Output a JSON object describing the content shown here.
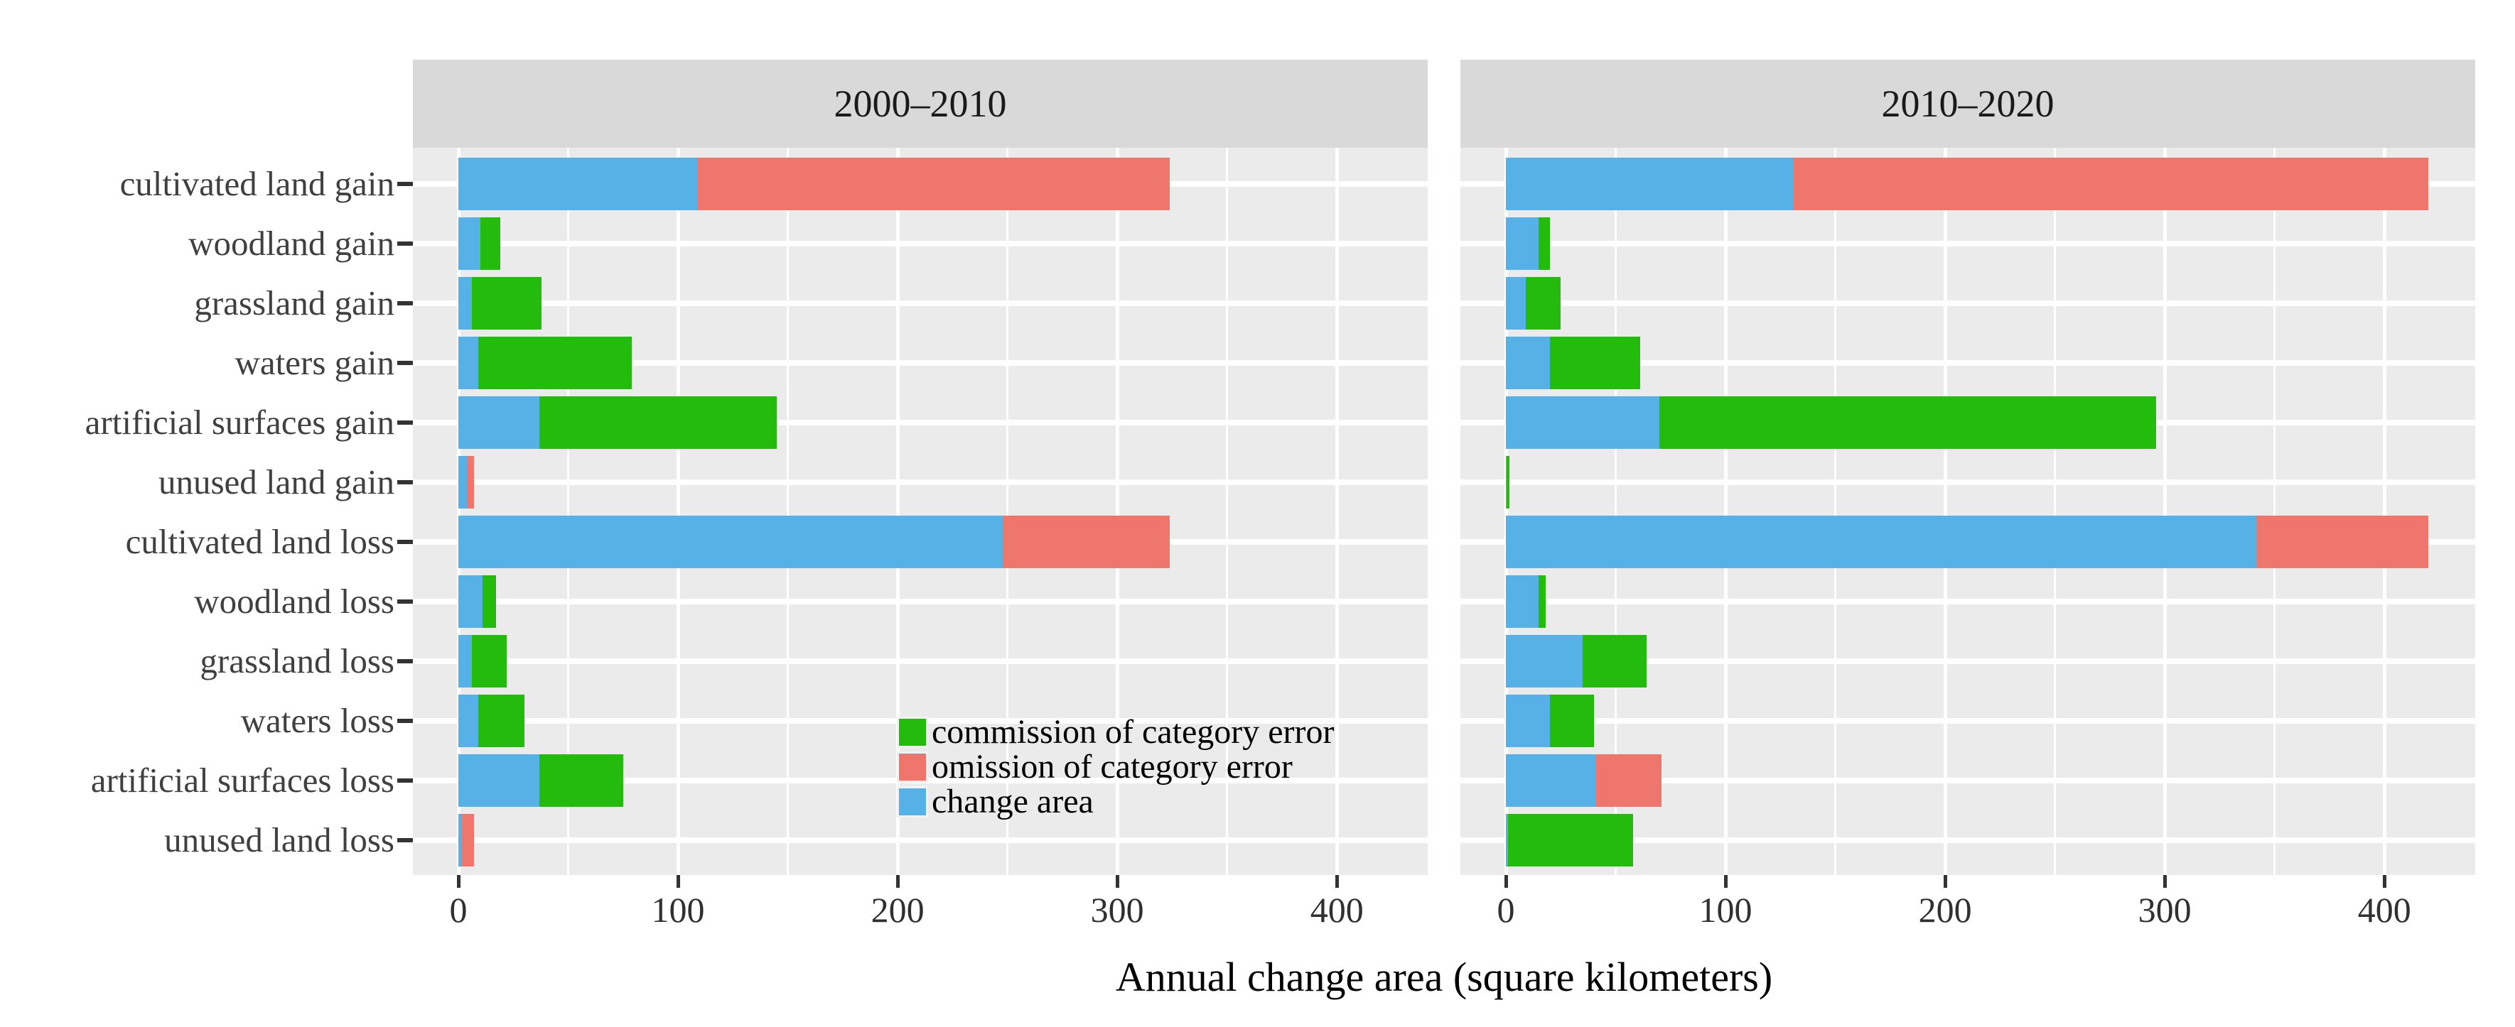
{
  "chart_data": {
    "type": "bar",
    "orientation": "horizontal",
    "stacked": true,
    "xlabel": "Annual change area (square kilometers)",
    "x_ticks": [
      0,
      100,
      200,
      300,
      400
    ],
    "xlim": [
      -21,
      442
    ],
    "grid": "white major/minor gridlines on gray panel",
    "legend_position": "inside lower-middle of left panel",
    "categories": [
      "cultivated land gain",
      "woodland gain",
      "grassland gain",
      "waters gain",
      "artificial surfaces gain",
      "unused land gain",
      "cultivated land loss",
      "woodland loss",
      "grassland loss",
      "waters loss",
      "artificial surfaces loss",
      "unused land loss"
    ],
    "series_order": [
      "change_area",
      "commission",
      "omission"
    ],
    "legend": [
      {
        "name": "commission",
        "label": "commission of category error",
        "color": "#23bb0c"
      },
      {
        "name": "omission",
        "label": "omission of category error",
        "color": "#ee766c"
      },
      {
        "name": "change_area",
        "label": "change area",
        "color": "#56b2e6"
      }
    ],
    "facets": [
      {
        "label": "2000–2010",
        "bars": [
          {
            "category": "cultivated land gain",
            "change_area": 109,
            "commission": 0,
            "omission": 215
          },
          {
            "category": "woodland gain",
            "change_area": 10,
            "commission": 9,
            "omission": 0
          },
          {
            "category": "grassland gain",
            "change_area": 6,
            "commission": 32,
            "omission": 0
          },
          {
            "category": "waters gain",
            "change_area": 9,
            "commission": 70,
            "omission": 0
          },
          {
            "category": "artificial surfaces gain",
            "change_area": 37,
            "commission": 108,
            "omission": 0
          },
          {
            "category": "unused land gain",
            "change_area": 4,
            "commission": 0,
            "omission": 3
          },
          {
            "category": "cultivated land loss",
            "change_area": 248,
            "commission": 0,
            "omission": 76
          },
          {
            "category": "woodland loss",
            "change_area": 11,
            "commission": 6,
            "omission": 0
          },
          {
            "category": "grassland loss",
            "change_area": 6,
            "commission": 16,
            "omission": 0
          },
          {
            "category": "waters loss",
            "change_area": 9,
            "commission": 21,
            "omission": 0
          },
          {
            "category": "artificial surfaces loss",
            "change_area": 37,
            "commission": 38,
            "omission": 0
          },
          {
            "category": "unused land loss",
            "change_area": 1.5,
            "commission": 0,
            "omission": 5.5
          }
        ]
      },
      {
        "label": "2010–2020",
        "bars": [
          {
            "category": "cultivated land gain",
            "change_area": 131,
            "commission": 0,
            "omission": 289
          },
          {
            "category": "woodland gain",
            "change_area": 15,
            "commission": 5,
            "omission": 0
          },
          {
            "category": "grassland gain",
            "change_area": 9,
            "commission": 16,
            "omission": 0
          },
          {
            "category": "waters gain",
            "change_area": 20,
            "commission": 41,
            "omission": 0
          },
          {
            "category": "artificial surfaces gain",
            "change_area": 70,
            "commission": 226,
            "omission": 0
          },
          {
            "category": "unused land gain",
            "change_area": 0.3,
            "commission": 1.2,
            "omission": 0
          },
          {
            "category": "cultivated land loss",
            "change_area": 342,
            "commission": 0,
            "omission": 78
          },
          {
            "category": "woodland loss",
            "change_area": 15,
            "commission": 3,
            "omission": 0
          },
          {
            "category": "grassland loss",
            "change_area": 35,
            "commission": 29,
            "omission": 0
          },
          {
            "category": "waters loss",
            "change_area": 20,
            "commission": 20,
            "omission": 0
          },
          {
            "category": "artificial surfaces loss",
            "change_area": 41,
            "commission": 0,
            "omission": 30
          },
          {
            "category": "unused land loss",
            "change_area": 1,
            "commission": 57,
            "omission": 0
          }
        ]
      }
    ],
    "colors": {
      "change_area": "#56b2e6",
      "commission": "#23bb0c",
      "omission": "#ee766c",
      "panel_background": "#ebebeb",
      "strip_background": "#d9d9d9",
      "gridline": "#ffffff",
      "tick": "#333333",
      "axis_text": "#303030"
    }
  }
}
